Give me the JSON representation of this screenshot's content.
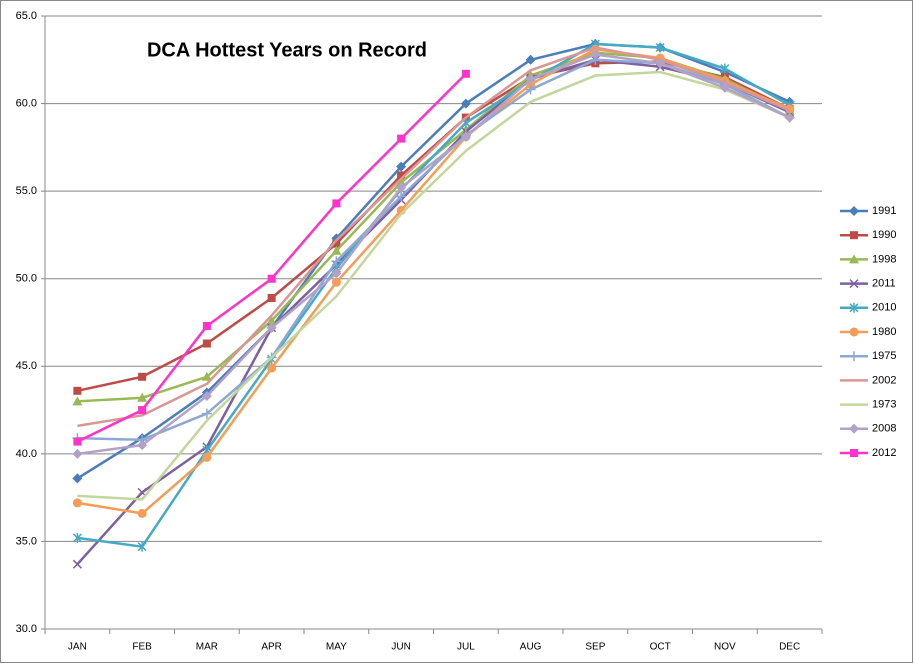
{
  "chart_data": {
    "type": "line",
    "title": "DCA Hottest Years on Record",
    "categories": [
      "JAN",
      "FEB",
      "MAR",
      "APR",
      "MAY",
      "JUN",
      "JUL",
      "AUG",
      "SEP",
      "OCT",
      "NOV",
      "DEC"
    ],
    "ylim": [
      30,
      65
    ],
    "yticks": [
      {
        "value": 30,
        "label": "30.0"
      },
      {
        "value": 35,
        "label": "35.0"
      },
      {
        "value": 40,
        "label": "40.0"
      },
      {
        "value": 45,
        "label": "45.0"
      },
      {
        "value": 50,
        "label": "50.0"
      },
      {
        "value": 55,
        "label": "55.0"
      },
      {
        "value": 60,
        "label": "60.0"
      },
      {
        "value": 65,
        "label": "65.0"
      }
    ],
    "grid": true,
    "legend": "right",
    "series": [
      {
        "name": "1991",
        "color": "#4a7ebb",
        "marker": "diamond",
        "values": [
          38.6,
          40.9,
          43.5,
          47.2,
          52.3,
          56.4,
          60.0,
          62.5,
          63.4,
          63.2,
          61.8,
          60.1
        ]
      },
      {
        "name": "1990",
        "color": "#be4b48",
        "marker": "square",
        "values": [
          43.6,
          44.4,
          46.3,
          48.9,
          52.0,
          55.9,
          59.2,
          61.5,
          62.3,
          62.4,
          61.5,
          59.7
        ]
      },
      {
        "name": "1998",
        "color": "#98b954",
        "marker": "triangle",
        "values": [
          43.0,
          43.2,
          44.4,
          47.6,
          51.6,
          55.5,
          58.5,
          61.6,
          62.9,
          62.6,
          61.4,
          59.6
        ]
      },
      {
        "name": "2011",
        "color": "#7d60a0",
        "marker": "x",
        "values": [
          33.7,
          37.8,
          40.4,
          47.2,
          50.8,
          54.5,
          58.4,
          61.4,
          62.5,
          62.1,
          61.2,
          59.5
        ]
      },
      {
        "name": "2010",
        "color": "#46aac5",
        "marker": "star",
        "values": [
          35.2,
          34.7,
          40.2,
          45.4,
          50.6,
          55.1,
          58.9,
          61.3,
          63.4,
          63.2,
          62.0,
          59.9
        ]
      },
      {
        "name": "1980",
        "color": "#f59d56",
        "marker": "circle",
        "values": [
          37.2,
          36.6,
          39.8,
          44.9,
          49.8,
          53.9,
          58.1,
          61.1,
          63.1,
          62.6,
          61.3,
          59.7
        ]
      },
      {
        "name": "1975",
        "color": "#8da8d4",
        "marker": "plus",
        "values": [
          40.9,
          40.8,
          42.3,
          45.5,
          51.0,
          54.7,
          58.2,
          60.8,
          62.5,
          62.3,
          61.1,
          59.2
        ]
      },
      {
        "name": "2002",
        "color": "#d99694",
        "marker": "none",
        "values": [
          41.6,
          42.2,
          44.0,
          47.9,
          52.2,
          55.7,
          59.2,
          61.9,
          63.2,
          62.5,
          61.2,
          59.6
        ]
      },
      {
        "name": "1973",
        "color": "#c3d69b",
        "marker": "none",
        "values": [
          37.6,
          37.4,
          41.9,
          45.5,
          49.0,
          53.7,
          57.3,
          60.1,
          61.6,
          61.8,
          60.8,
          59.2
        ]
      },
      {
        "name": "2008",
        "color": "#b3a2c7",
        "marker": "diamond",
        "values": [
          40.0,
          40.5,
          43.3,
          47.2,
          50.3,
          55.2,
          58.1,
          61.4,
          62.8,
          62.3,
          60.9,
          59.2
        ]
      },
      {
        "name": "2012",
        "color": "#ff33cc",
        "marker": "square",
        "values": [
          40.7,
          42.5,
          47.3,
          50.0,
          54.3,
          58.0,
          61.7,
          null,
          null,
          null,
          null,
          null
        ]
      }
    ]
  }
}
